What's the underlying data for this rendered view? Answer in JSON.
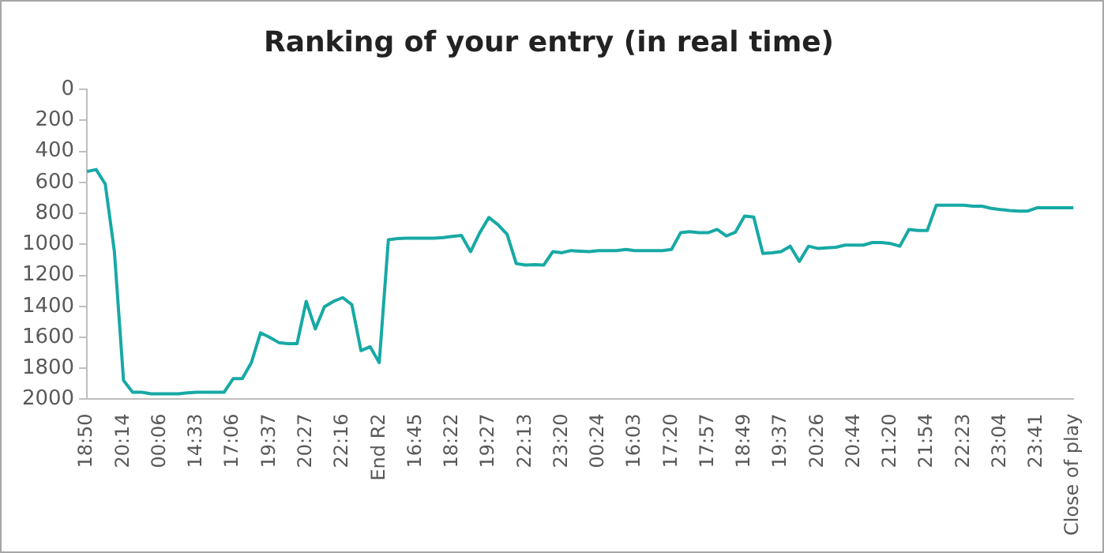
{
  "chart_data": {
    "type": "line",
    "title": "Ranking of your entry (in real time)",
    "categories": [
      "18:50",
      null,
      null,
      null,
      "20:14",
      null,
      null,
      null,
      "00:06",
      null,
      null,
      null,
      "14:33",
      null,
      null,
      null,
      "17:06",
      null,
      null,
      null,
      "19:37",
      null,
      null,
      null,
      "20:27",
      null,
      null,
      null,
      "22:16",
      null,
      null,
      null,
      "End R2",
      null,
      null,
      null,
      "16:45",
      null,
      null,
      null,
      "18:22",
      null,
      null,
      null,
      "19:27",
      null,
      null,
      null,
      "22:13",
      null,
      null,
      null,
      "23:20",
      null,
      null,
      null,
      "00:24",
      null,
      null,
      null,
      "16:03",
      null,
      null,
      null,
      "17:20",
      null,
      null,
      null,
      "17:57",
      null,
      null,
      null,
      "18:49",
      null,
      null,
      null,
      "19:37",
      null,
      null,
      null,
      "20:26",
      null,
      null,
      null,
      "20:44",
      null,
      null,
      null,
      "21:20",
      null,
      null,
      null,
      "21:54",
      null,
      null,
      null,
      "22:23",
      null,
      null,
      null,
      "23:04",
      null,
      null,
      null,
      "23:41",
      null,
      null,
      null,
      "Close of play"
    ],
    "series": [
      {
        "color": "#17a9a5",
        "values": [
          530,
          517,
          611,
          1047,
          1878,
          1955,
          1955,
          1965,
          1965,
          1965,
          1965,
          1958,
          1955,
          1955,
          1955,
          1955,
          1867,
          1867,
          1763,
          1571,
          1600,
          1634,
          1641,
          1641,
          1368,
          1546,
          1403,
          1368,
          1344,
          1389,
          1686,
          1661,
          1763,
          970,
          963,
          960,
          960,
          960,
          960,
          956,
          949,
          942,
          1047,
          925,
          827,
          873,
          935,
          1124,
          1134,
          1131,
          1134,
          1047,
          1054,
          1040,
          1044,
          1047,
          1040,
          1040,
          1040,
          1033,
          1040,
          1040,
          1040,
          1040,
          1033,
          925,
          918,
          925,
          925,
          904,
          946,
          921,
          817,
          824,
          1058,
          1054,
          1047,
          1012,
          1110,
          1012,
          1026,
          1023,
          1019,
          1005,
          1005,
          1005,
          988,
          988,
          995,
          1012,
          904,
          911,
          911,
          747,
          747,
          747,
          747,
          754,
          754,
          768,
          775,
          782,
          785,
          785,
          764,
          764,
          764,
          764,
          764
        ]
      }
    ],
    "ylim": [
      2000,
      0
    ],
    "yticks": [
      0,
      200,
      400,
      600,
      800,
      1000,
      1200,
      1400,
      1600,
      1800,
      2000
    ],
    "grid": false,
    "legend": false,
    "marker": "none",
    "line_style": "solid"
  }
}
